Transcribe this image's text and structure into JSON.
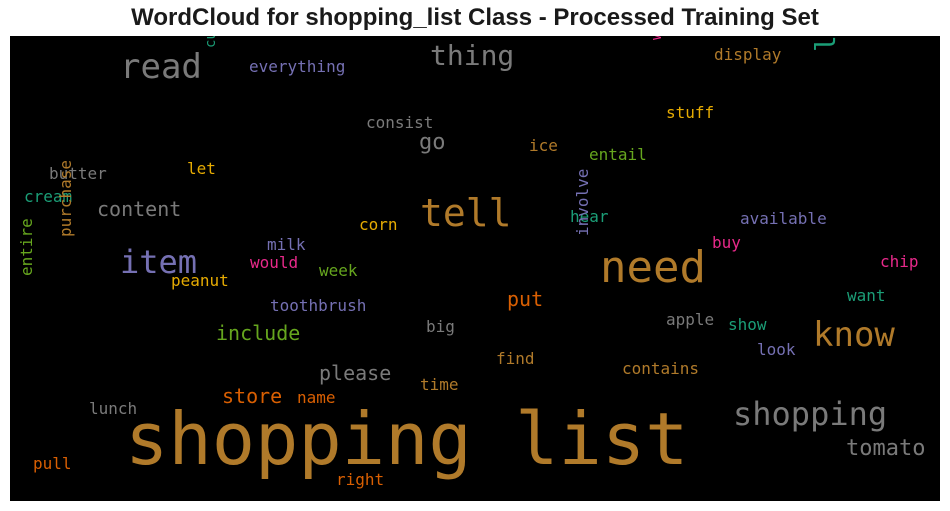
{
  "chart_data": {
    "type": "wordcloud",
    "title": "WordCloud for shopping_list Class - Processed Training Set",
    "background": "#000000",
    "words": [
      {
        "text": "shopping list",
        "color": "#b07a2a",
        "rotated": false
      },
      {
        "text": "need",
        "color": "#b07a2a",
        "rotated": false
      },
      {
        "text": "tell",
        "color": "#b07a2a",
        "rotated": false
      },
      {
        "text": "know",
        "color": "#b07a2a",
        "rotated": false
      },
      {
        "text": "shopping",
        "color": "#7a7a7a",
        "rotated": false
      },
      {
        "text": "read",
        "color": "#7a7a7a",
        "rotated": false
      },
      {
        "text": "item",
        "color": "#7570b3",
        "rotated": false
      },
      {
        "text": "thing",
        "color": "#7a7a7a",
        "rotated": false
      },
      {
        "text": "list",
        "color": "#1b9e77",
        "rotated": true
      },
      {
        "text": "tomato",
        "color": "#7a7a7a",
        "rotated": false
      },
      {
        "text": "content",
        "color": "#7a7a7a",
        "rotated": false
      },
      {
        "text": "include",
        "color": "#66a61e",
        "rotated": false
      },
      {
        "text": "please",
        "color": "#7a7a7a",
        "rotated": false
      },
      {
        "text": "store",
        "color": "#d95f02",
        "rotated": false
      },
      {
        "text": "put",
        "color": "#d95f02",
        "rotated": false
      },
      {
        "text": "go",
        "color": "#7a7a7a",
        "rotated": false
      },
      {
        "text": "everything",
        "color": "#7570b3",
        "rotated": false
      },
      {
        "text": "display",
        "color": "#b07a2a",
        "rotated": false
      },
      {
        "text": "stuff",
        "color": "#e6ab02",
        "rotated": false
      },
      {
        "text": "write",
        "color": "#e7298a",
        "rotated": true
      },
      {
        "text": "currently",
        "color": "#1b9e77",
        "rotated": true
      },
      {
        "text": "consist",
        "color": "#7a7a7a",
        "rotated": false
      },
      {
        "text": "ice",
        "color": "#b07a2a",
        "rotated": false
      },
      {
        "text": "entail",
        "color": "#66a61e",
        "rotated": false
      },
      {
        "text": "butter",
        "color": "#7a7a7a",
        "rotated": false
      },
      {
        "text": "let",
        "color": "#e6ab02",
        "rotated": false
      },
      {
        "text": "cream",
        "color": "#1b9e77",
        "rotated": false
      },
      {
        "text": "hear",
        "color": "#1b9e77",
        "rotated": false
      },
      {
        "text": "available",
        "color": "#7570b3",
        "rotated": false
      },
      {
        "text": "corn",
        "color": "#e6ab02",
        "rotated": false
      },
      {
        "text": "milk",
        "color": "#7570b3",
        "rotated": false
      },
      {
        "text": "would",
        "color": "#e7298a",
        "rotated": false
      },
      {
        "text": "week",
        "color": "#66a61e",
        "rotated": false
      },
      {
        "text": "buy",
        "color": "#e7298a",
        "rotated": false
      },
      {
        "text": "chip",
        "color": "#e7298a",
        "rotated": false
      },
      {
        "text": "purchase",
        "color": "#b07a2a",
        "rotated": true
      },
      {
        "text": "entire",
        "color": "#66a61e",
        "rotated": true
      },
      {
        "text": "involve",
        "color": "#7570b3",
        "rotated": true
      },
      {
        "text": "peanut",
        "color": "#e6ab02",
        "rotated": false
      },
      {
        "text": "toothbrush",
        "color": "#7570b3",
        "rotated": false
      },
      {
        "text": "want",
        "color": "#1b9e77",
        "rotated": false
      },
      {
        "text": "apple",
        "color": "#7a7a7a",
        "rotated": false
      },
      {
        "text": "show",
        "color": "#1b9e77",
        "rotated": false
      },
      {
        "text": "big",
        "color": "#7a7a7a",
        "rotated": false
      },
      {
        "text": "look",
        "color": "#7570b3",
        "rotated": false
      },
      {
        "text": "find",
        "color": "#b07a2a",
        "rotated": false
      },
      {
        "text": "contains",
        "color": "#b07a2a",
        "rotated": false
      },
      {
        "text": "time",
        "color": "#b07a2a",
        "rotated": false
      },
      {
        "text": "name",
        "color": "#d95f02",
        "rotated": false
      },
      {
        "text": "lunch",
        "color": "#7a7a7a",
        "rotated": false
      },
      {
        "text": "pull",
        "color": "#d95f02",
        "rotated": false
      },
      {
        "text": "right",
        "color": "#d95f02",
        "rotated": false
      }
    ]
  }
}
